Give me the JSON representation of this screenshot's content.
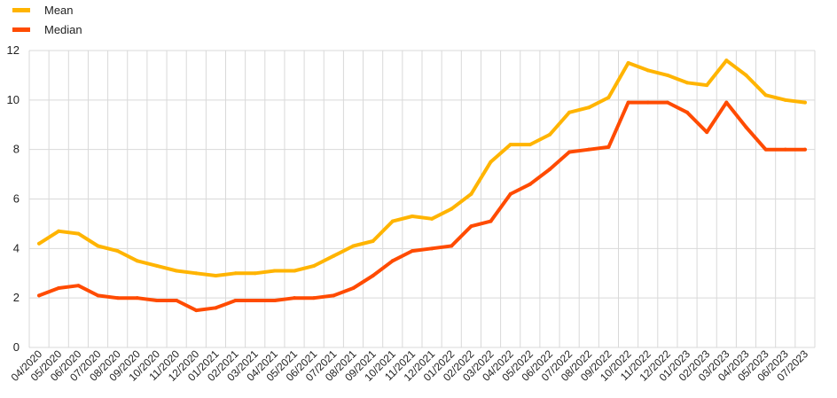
{
  "chart_data": {
    "type": "line",
    "categories": [
      "04/2020",
      "05/2020",
      "06/2020",
      "07/2020",
      "08/2020",
      "09/2020",
      "10/2020",
      "11/2020",
      "12/2020",
      "01/2021",
      "02/2021",
      "03/2021",
      "04/2021",
      "05/2021",
      "06/2021",
      "07/2021",
      "08/2021",
      "09/2021",
      "10/2021",
      "11/2021",
      "12/2021",
      "01/2022",
      "02/2022",
      "03/2022",
      "04/2022",
      "05/2022",
      "06/2022",
      "07/2022",
      "08/2022",
      "09/2022",
      "10/2022",
      "11/2022",
      "12/2022",
      "01/2023",
      "02/2023",
      "03/2023",
      "04/2023",
      "05/2023",
      "06/2023",
      "07/2023"
    ],
    "series": [
      {
        "name": "Mean",
        "color": "#FFB400",
        "values": [
          4.2,
          4.7,
          4.6,
          4.1,
          3.9,
          3.5,
          3.3,
          3.1,
          3.0,
          2.9,
          3.0,
          3.0,
          3.1,
          3.1,
          3.3,
          3.7,
          4.1,
          4.3,
          5.1,
          5.3,
          5.2,
          5.6,
          6.2,
          7.5,
          8.2,
          8.2,
          8.6,
          9.5,
          9.7,
          10.1,
          11.5,
          11.2,
          11.0,
          10.7,
          10.6,
          11.6,
          11.0,
          10.2,
          10.0,
          9.9
        ]
      },
      {
        "name": "Median",
        "color": "#FF4B00",
        "values": [
          2.1,
          2.4,
          2.5,
          2.1,
          2.0,
          2.0,
          1.9,
          1.9,
          1.5,
          1.6,
          1.9,
          1.9,
          1.9,
          2.0,
          2.0,
          2.1,
          2.4,
          2.9,
          3.5,
          3.9,
          4.0,
          4.1,
          4.9,
          5.1,
          6.2,
          6.6,
          7.2,
          7.9,
          8.0,
          8.1,
          9.9,
          9.9,
          9.9,
          9.5,
          8.7,
          9.9,
          8.9,
          8.0,
          8.0,
          8.0
        ]
      }
    ],
    "yticks": [
      0,
      2,
      4,
      6,
      8,
      10,
      12
    ],
    "ylim": [
      0,
      12
    ],
    "grid": true,
    "legend": "top-left",
    "title": "",
    "xlabel": "",
    "ylabel": ""
  }
}
